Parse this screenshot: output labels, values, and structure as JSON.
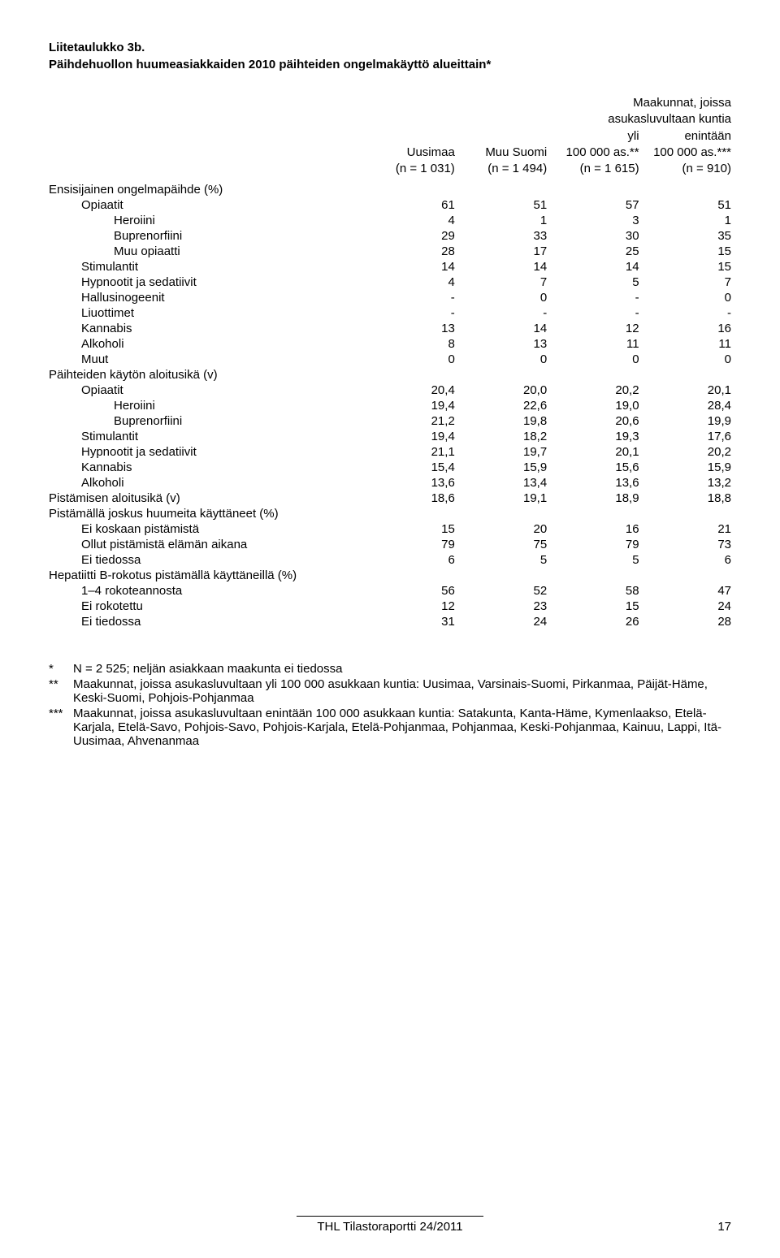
{
  "title": "Liitetaulukko 3b.",
  "subtitle": "Päihdehuollon huumeasiakkaiden 2010 päihteiden ongelmakäyttö alueittain*",
  "columns": [
    {
      "line1": "",
      "line2": "",
      "line3": "Uusimaa",
      "line4": "(n = 1 031)"
    },
    {
      "line1": "",
      "line2": "",
      "line3": "Muu Suomi",
      "line4": "(n = 1 494)"
    },
    {
      "line1": "Maakunnat, joissa",
      "line2": "asukasluvultaan kuntia",
      "line3a": "yli",
      "line3b": "enintään",
      "line4a": "100 000 as.**",
      "line4b": "100 000 as.***",
      "line5a": "(n = 1 615)",
      "line5b": "(n = 910)"
    }
  ],
  "sections": [
    {
      "header": "Ensisijainen ongelmapäihde (%)",
      "rows": [
        {
          "label": "Opiaatit",
          "indent": true,
          "v": [
            "61",
            "51",
            "57",
            "51"
          ]
        },
        {
          "label": "Heroiini",
          "indent": 2,
          "v": [
            "4",
            "1",
            "3",
            "1"
          ]
        },
        {
          "label": "Buprenorfiini",
          "indent": 2,
          "v": [
            "29",
            "33",
            "30",
            "35"
          ]
        },
        {
          "label": "Muu opiaatti",
          "indent": 2,
          "v": [
            "28",
            "17",
            "25",
            "15"
          ]
        },
        {
          "label": "Stimulantit",
          "indent": true,
          "v": [
            "14",
            "14",
            "14",
            "15"
          ]
        },
        {
          "label": "Hypnootit ja sedatiivit",
          "indent": true,
          "v": [
            "4",
            "7",
            "5",
            "7"
          ]
        },
        {
          "label": "Hallusinogeenit",
          "indent": true,
          "v": [
            "-",
            "0",
            "-",
            "0"
          ]
        },
        {
          "label": "Liuottimet",
          "indent": true,
          "v": [
            "-",
            "-",
            "-",
            "-"
          ]
        },
        {
          "label": "Kannabis",
          "indent": true,
          "v": [
            "13",
            "14",
            "12",
            "16"
          ]
        },
        {
          "label": "Alkoholi",
          "indent": true,
          "v": [
            "8",
            "13",
            "11",
            "11"
          ]
        },
        {
          "label": "Muut",
          "indent": true,
          "v": [
            "0",
            "0",
            "0",
            "0"
          ]
        }
      ]
    },
    {
      "header": "Päihteiden käytön aloitusikä (v)",
      "rows": [
        {
          "label": "Opiaatit",
          "indent": true,
          "v": [
            "20,4",
            "20,0",
            "20,2",
            "20,1"
          ]
        },
        {
          "label": "Heroiini",
          "indent": 2,
          "v": [
            "19,4",
            "22,6",
            "19,0",
            "28,4"
          ]
        },
        {
          "label": "Buprenorfiini",
          "indent": 2,
          "v": [
            "21,2",
            "19,8",
            "20,6",
            "19,9"
          ]
        },
        {
          "label": "Stimulantit",
          "indent": true,
          "v": [
            "19,4",
            "18,2",
            "19,3",
            "17,6"
          ]
        },
        {
          "label": "Hypnootit ja sedatiivit",
          "indent": true,
          "v": [
            "21,1",
            "19,7",
            "20,1",
            "20,2"
          ]
        },
        {
          "label": "Kannabis",
          "indent": true,
          "v": [
            "15,4",
            "15,9",
            "15,6",
            "15,9"
          ]
        },
        {
          "label": "Alkoholi",
          "indent": true,
          "v": [
            "13,6",
            "13,4",
            "13,6",
            "13,2"
          ]
        }
      ]
    },
    {
      "header": "Pistämisen aloitusikä (v)",
      "inline": true,
      "v": [
        "18,6",
        "19,1",
        "18,9",
        "18,8"
      ]
    },
    {
      "header": "Pistämällä joskus huumeita käyttäneet (%)",
      "rows": [
        {
          "label": "Ei koskaan pistämistä",
          "indent": true,
          "v": [
            "15",
            "20",
            "16",
            "21"
          ]
        },
        {
          "label": "Ollut pistämistä elämän aikana",
          "indent": true,
          "v": [
            "79",
            "75",
            "79",
            "73"
          ]
        },
        {
          "label": "Ei tiedossa",
          "indent": true,
          "v": [
            "6",
            "5",
            "5",
            "6"
          ]
        }
      ]
    },
    {
      "header": "Hepatiitti B-rokotus pistämällä käyttäneillä (%)",
      "rows": [
        {
          "label": "1–4 rokoteannosta",
          "indent": true,
          "v": [
            "56",
            "52",
            "58",
            "47"
          ]
        },
        {
          "label": "Ei rokotettu",
          "indent": true,
          "v": [
            "12",
            "23",
            "15",
            "24"
          ]
        },
        {
          "label": "Ei tiedossa",
          "indent": true,
          "v": [
            "31",
            "24",
            "26",
            "28"
          ]
        }
      ]
    }
  ],
  "notes": [
    {
      "mark": "*",
      "text": "N = 2 525; neljän asiakkaan maakunta ei tiedossa"
    },
    {
      "mark": "**",
      "text": "Maakunnat, joissa asukasluvultaan yli 100 000 asukkaan kuntia: Uusimaa, Varsinais-Suomi, Pirkanmaa, Päijät-Häme, Keski-Suomi, Pohjois-Pohjanmaa"
    },
    {
      "mark": "***",
      "text": "Maakunnat, joissa asukasluvultaan enintään 100 000 asukkaan kuntia: Satakunta, Kanta-Häme, Kymenlaakso, Etelä-Karjala, Etelä-Savo, Pohjois-Savo, Pohjois-Karjala, Etelä-Pohjanmaa, Pohjanmaa, Keski-Pohjanmaa, Kainuu, Lappi, Itä-Uusimaa, Ahvenanmaa"
    }
  ],
  "footer": "THL Tilastoraportti 24/2011",
  "page": "17"
}
